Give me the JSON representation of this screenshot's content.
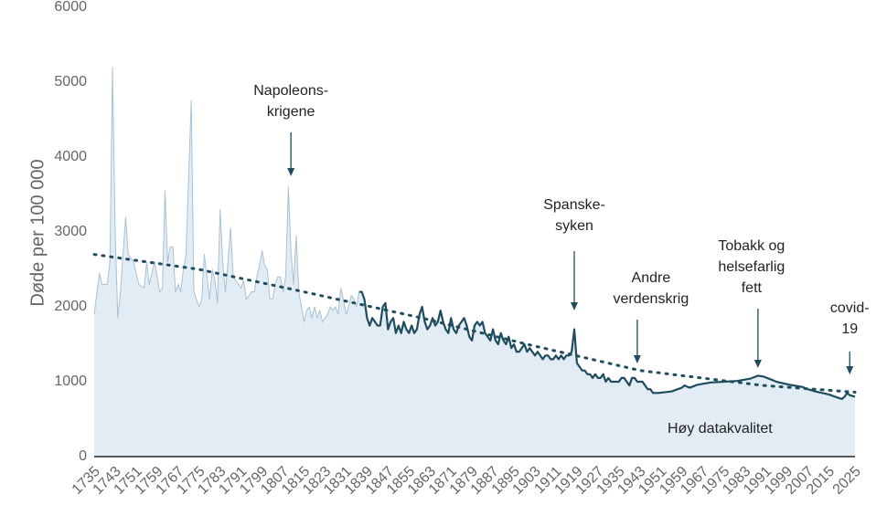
{
  "chart_data": {
    "type": "area",
    "y_label": "Døde per 100 000",
    "x": [
      1735,
      1737,
      1738,
      1740,
      1741,
      1742,
      1743,
      1744,
      1745,
      1747,
      1748,
      1750,
      1752,
      1754,
      1755,
      1756,
      1758,
      1760,
      1761,
      1762,
      1763,
      1764,
      1765,
      1766,
      1767,
      1768,
      1769,
      1770,
      1772,
      1773,
      1775,
      1776,
      1777,
      1778,
      1779,
      1780,
      1781,
      1782,
      1783,
      1784,
      1785,
      1786,
      1787,
      1788,
      1790,
      1791,
      1792,
      1793,
      1795,
      1796,
      1797,
      1798,
      1799,
      1800,
      1801,
      1802,
      1803,
      1804,
      1805,
      1806,
      1807,
      1808,
      1809,
      1810,
      1811,
      1812,
      1813,
      1814,
      1815,
      1816,
      1817,
      1818,
      1819,
      1820,
      1821,
      1822,
      1823,
      1824,
      1825,
      1826,
      1827,
      1828,
      1829,
      1830,
      1831,
      1832,
      1833,
      1834,
      1835,
      1836,
      1837,
      1838,
      1839,
      1840,
      1841,
      1842,
      1843,
      1844,
      1845,
      1846,
      1847,
      1848,
      1849,
      1850,
      1851,
      1852,
      1853,
      1854,
      1855,
      1856,
      1857,
      1858,
      1859,
      1860,
      1861,
      1862,
      1863,
      1864,
      1865,
      1866,
      1867,
      1868,
      1869,
      1870,
      1871,
      1872,
      1873,
      1874,
      1875,
      1876,
      1877,
      1878,
      1879,
      1880,
      1881,
      1882,
      1883,
      1884,
      1885,
      1886,
      1887,
      1888,
      1889,
      1890,
      1891,
      1892,
      1893,
      1894,
      1895,
      1896,
      1897,
      1898,
      1899,
      1900,
      1901,
      1902,
      1903,
      1904,
      1905,
      1906,
      1907,
      1908,
      1909,
      1910,
      1911,
      1912,
      1913,
      1914,
      1915,
      1916,
      1917,
      1918,
      1919,
      1920,
      1921,
      1922,
      1923,
      1924,
      1925,
      1926,
      1927,
      1928,
      1929,
      1930,
      1931,
      1932,
      1933,
      1934,
      1935,
      1936,
      1937,
      1938,
      1939,
      1940,
      1941,
      1942,
      1943,
      1944,
      1945,
      1946,
      1947,
      1948,
      1949,
      1950,
      1955,
      1959,
      1960,
      1962,
      1965,
      1970,
      1975,
      1980,
      1985,
      1988,
      1990,
      1993,
      1995,
      2000,
      2005,
      2007,
      2010,
      2015,
      2019,
      2020,
      2021,
      2022,
      2023,
      2024,
      2025
    ],
    "values": [
      1900,
      2450,
      2300,
      2300,
      2600,
      5200,
      3000,
      1850,
      2200,
      3200,
      2700,
      2600,
      2300,
      2250,
      2600,
      2300,
      2600,
      2200,
      2250,
      3550,
      2600,
      2800,
      2800,
      2200,
      2300,
      2200,
      2500,
      2700,
      4750,
      2200,
      2000,
      2100,
      2700,
      2400,
      2100,
      2500,
      2350,
      2050,
      3300,
      2600,
      2200,
      2600,
      3050,
      2400,
      2300,
      2250,
      2350,
      2100,
      2200,
      2200,
      2400,
      2550,
      2750,
      2550,
      2500,
      2100,
      2100,
      2300,
      2400,
      2400,
      2200,
      2400,
      3600,
      2750,
      2300,
      2950,
      2200,
      2000,
      1800,
      1950,
      2000,
      1850,
      2000,
      1850,
      1950,
      1800,
      1850,
      1900,
      2000,
      1950,
      2000,
      1900,
      2250,
      2100,
      1900,
      2000,
      2150,
      2100,
      2000,
      2200,
      2200,
      2100,
      1850,
      1750,
      1850,
      1800,
      1750,
      1750,
      2000,
      2050,
      1700,
      1800,
      1850,
      1650,
      1750,
      1650,
      1800,
      1700,
      1650,
      1750,
      1650,
      1700,
      1900,
      2000,
      1800,
      1700,
      1750,
      1850,
      1750,
      1800,
      1950,
      1800,
      1700,
      1650,
      1850,
      1700,
      1650,
      1750,
      1800,
      1850,
      1750,
      1600,
      1550,
      1750,
      1800,
      1750,
      1800,
      1650,
      1600,
      1550,
      1700,
      1550,
      1500,
      1650,
      1550,
      1500,
      1600,
      1450,
      1500,
      1400,
      1400,
      1450,
      1500,
      1400,
      1450,
      1400,
      1350,
      1400,
      1350,
      1300,
      1350,
      1350,
      1300,
      1300,
      1350,
      1300,
      1350,
      1300,
      1350,
      1350,
      1400,
      1700,
      1250,
      1200,
      1150,
      1150,
      1100,
      1100,
      1050,
      1100,
      1050,
      1050,
      1100,
      1000,
      1050,
      1000,
      1000,
      1000,
      1000,
      1050,
      1050,
      1000,
      950,
      1050,
      1050,
      1000,
      1000,
      1000,
      950,
      900,
      900,
      850,
      850,
      850,
      870,
      920,
      950,
      920,
      960,
      990,
      1000,
      1010,
      1040,
      1080,
      1070,
      1030,
      1000,
      960,
      930,
      900,
      870,
      830,
      780,
      770,
      800,
      850,
      820,
      810,
      800
    ],
    "high_quality_from": 1836,
    "trend": {
      "x": [
        1735,
        1775,
        1815,
        1860,
        1900,
        1943,
        1990,
        2025
      ],
      "values": [
        2700,
        2500,
        2200,
        1850,
        1500,
        1150,
        950,
        860
      ]
    },
    "xlim": [
      1735,
      2025
    ],
    "xticks": [
      1735,
      1743,
      1751,
      1759,
      1767,
      1775,
      1783,
      1791,
      1799,
      1807,
      1815,
      1823,
      1831,
      1839,
      1847,
      1855,
      1863,
      1871,
      1879,
      1887,
      1895,
      1903,
      1911,
      1919,
      1927,
      1935,
      1943,
      1951,
      1959,
      1967,
      1975,
      1983,
      1991,
      1999,
      2007,
      2015,
      2025
    ],
    "ylim": [
      0,
      6000
    ],
    "yticks": [
      0,
      1000,
      2000,
      3000,
      4000,
      5000,
      6000
    ],
    "fill_color": "#e2ecf4",
    "thin_color": "#a9c1d2",
    "line_color": "#1f4d5e",
    "annotations": [
      {
        "lines": [
          "Napoleons-",
          "krigene"
        ],
        "x": 1810
      },
      {
        "lines": [
          "Spanske-",
          "syken"
        ],
        "x": 1918
      },
      {
        "lines": [
          "Andre",
          "verdenskrig"
        ],
        "x": 1942
      },
      {
        "lines": [
          "Tobakk og",
          "helsefarlig",
          "fett"
        ],
        "x": 1988
      },
      {
        "lines": [
          "covid-",
          "19"
        ],
        "x": 2023
      }
    ],
    "quality_note": "Høy datakvalitet"
  }
}
